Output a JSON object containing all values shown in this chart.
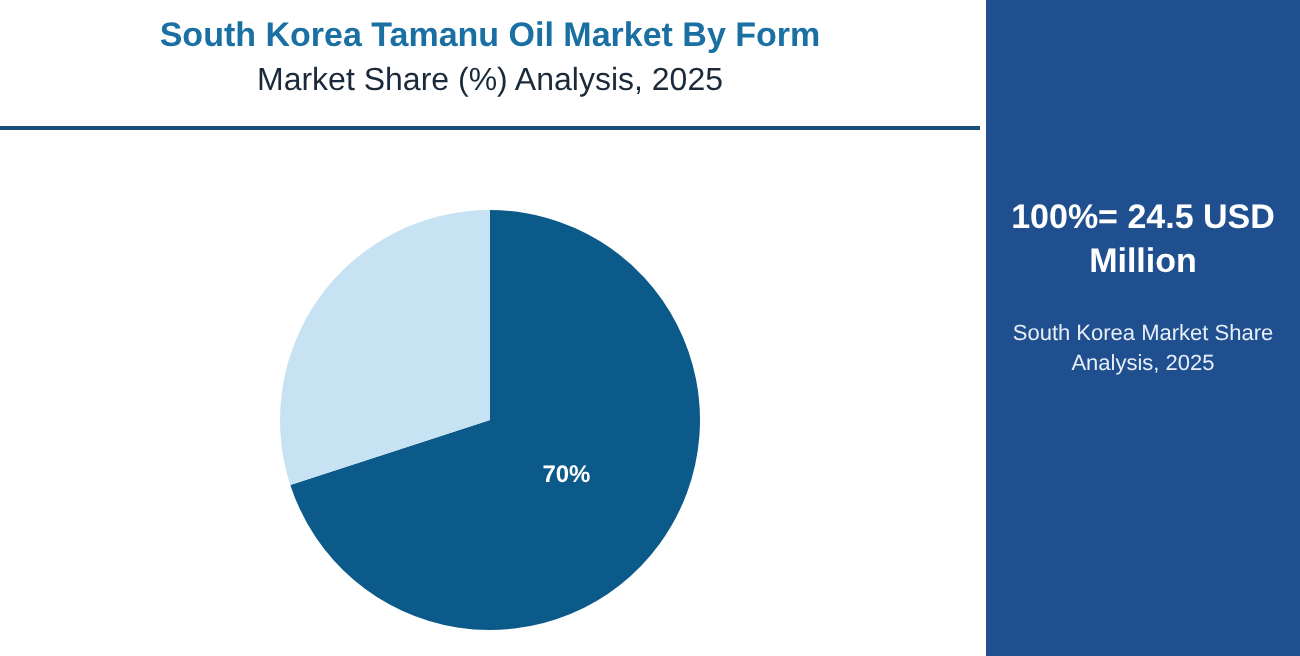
{
  "chart_data": {
    "type": "pie",
    "title": "South Korea Tamanu Oil Market By Form",
    "subtitle": "Market Share (%) Analysis, 2025",
    "categories": [
      null,
      null
    ],
    "values": [
      70,
      30
    ],
    "colors": [
      "#0b5a8a",
      "#c7e2f2"
    ],
    "value_labels": [
      "70%",
      null
    ],
    "annotations": [
      "100%= 24.5 USD Million",
      "South Korea Market Share Analysis, 2025"
    ]
  }
}
